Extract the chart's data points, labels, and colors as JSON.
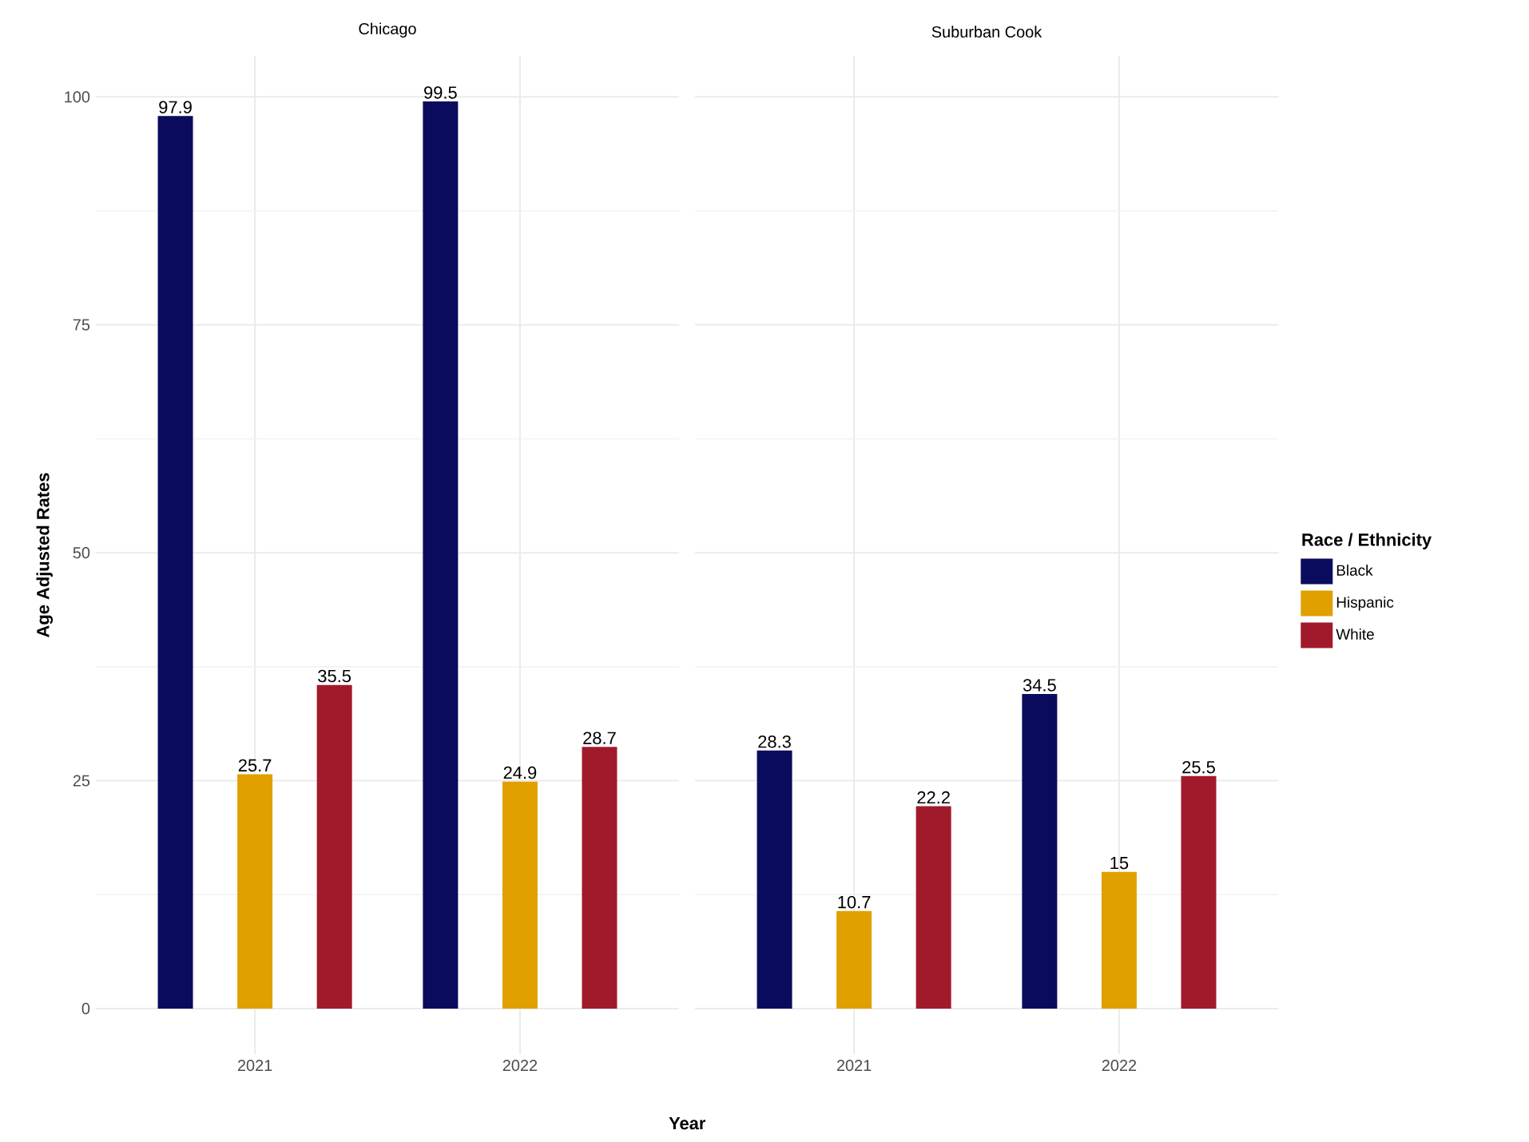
{
  "chart_data": [
    {
      "type": "bar",
      "title": "Chicago",
      "categories": [
        "2021",
        "2022"
      ],
      "xlabel": "Year",
      "ylabel": "Age Adjusted Rates",
      "ylim": [
        -5,
        104.5
      ],
      "yticks": [
        0,
        25,
        50,
        75,
        100
      ],
      "grid": true,
      "data_labels": true,
      "series": [
        {
          "color": "#0b0b5e",
          "values": [
            97.9,
            99.5
          ]
        },
        {
          "color": "#e0a000",
          "values": [
            25.7,
            24.9
          ]
        },
        {
          "color": "#a11a2b",
          "values": [
            35.5,
            28.7
          ]
        }
      ]
    },
    {
      "type": "bar",
      "title": "Suburban Cook",
      "categories": [
        "2021",
        "2022"
      ],
      "ylim": [
        -5,
        104.5
      ],
      "yticks": [
        0,
        25,
        50,
        75,
        100
      ],
      "tick_labels": "x",
      "grid": true,
      "data_labels": true,
      "legend": "right",
      "legend_title": "Race / Ethnicity",
      "series": [
        {
          "name": "Black",
          "color": "#0b0b5e",
          "values": [
            28.3,
            34.5
          ]
        },
        {
          "name": "Hispanic",
          "color": "#e0a000",
          "values": [
            10.7,
            15
          ]
        },
        {
          "name": "White",
          "color": "#a11a2b",
          "values": [
            22.2,
            25.5
          ]
        }
      ]
    }
  ]
}
